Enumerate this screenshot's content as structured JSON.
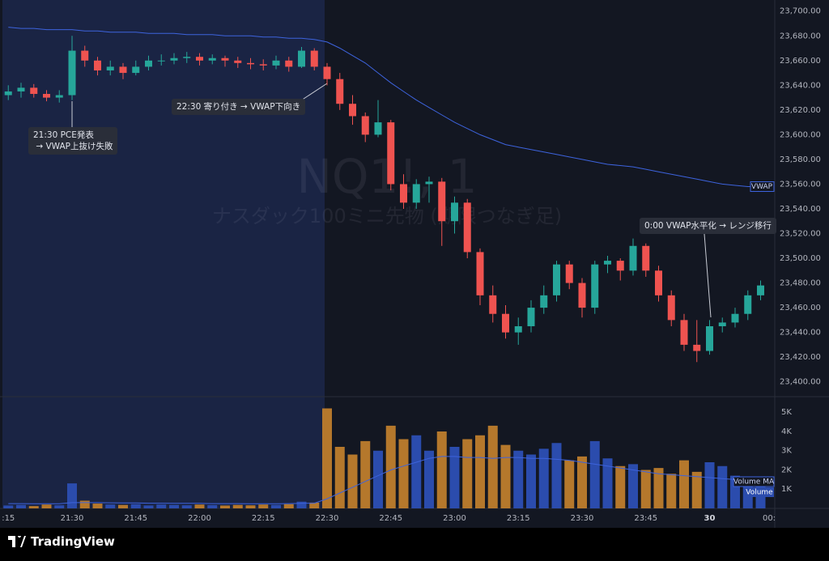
{
  "chart_data": {
    "type": "candlestick",
    "title": "NQ1!, 1",
    "subtitle": "ナスダック100ミニ先物 (期限つなぎ足)",
    "x": [
      "21:15",
      "21:18",
      "21:21",
      "21:24",
      "21:27",
      "21:30",
      "21:33",
      "21:36",
      "21:39",
      "21:42",
      "21:45",
      "21:48",
      "21:51",
      "21:54",
      "21:57",
      "22:00",
      "22:03",
      "22:06",
      "22:09",
      "22:12",
      "22:15",
      "22:18",
      "22:21",
      "22:24",
      "22:27",
      "22:30",
      "22:33",
      "22:36",
      "22:39",
      "22:42",
      "22:45",
      "22:48",
      "22:51",
      "22:54",
      "22:57",
      "23:00",
      "23:03",
      "23:06",
      "23:09",
      "23:12",
      "23:15",
      "23:18",
      "23:21",
      "23:24",
      "23:27",
      "23:30",
      "23:33",
      "23:36",
      "23:39",
      "23:42",
      "23:45",
      "23:48",
      "23:51",
      "23:54",
      "23:57",
      "00:00",
      "00:03",
      "00:06",
      "00:09",
      "00:12"
    ],
    "open": [
      23632,
      23635,
      23638,
      23633,
      23630,
      23632,
      23668,
      23660,
      23652,
      23655,
      23650,
      23655,
      23660,
      23660,
      23662,
      23663,
      23660,
      23662,
      23660,
      23658,
      23657,
      23656,
      23660,
      23655,
      23668,
      23655,
      23645,
      23625,
      23615,
      23600,
      23610,
      23560,
      23545,
      23560,
      23562,
      23530,
      23545,
      23505,
      23470,
      23455,
      23440,
      23445,
      23460,
      23470,
      23495,
      23480,
      23460,
      23495,
      23498,
      23490,
      23510,
      23490,
      23470,
      23450,
      23430,
      23425,
      23445,
      23448,
      23455,
      23470
    ],
    "high": [
      23640,
      23642,
      23641,
      23636,
      23636,
      23680,
      23672,
      23663,
      23660,
      23658,
      23660,
      23664,
      23665,
      23666,
      23667,
      23666,
      23665,
      23664,
      23663,
      23662,
      23661,
      23664,
      23663,
      23671,
      23670,
      23658,
      23650,
      23632,
      23618,
      23628,
      23612,
      23568,
      23564,
      23566,
      23565,
      23550,
      23548,
      23508,
      23478,
      23462,
      23452,
      23466,
      23478,
      23498,
      23498,
      23484,
      23498,
      23502,
      23500,
      23516,
      23512,
      23494,
      23474,
      23455,
      23450,
      23450,
      23452,
      23460,
      23474,
      23482
    ],
    "low": [
      23628,
      23630,
      23630,
      23627,
      23626,
      23628,
      23655,
      23648,
      23648,
      23645,
      23648,
      23652,
      23656,
      23657,
      23658,
      23656,
      23657,
      23655,
      23654,
      23653,
      23652,
      23653,
      23651,
      23654,
      23652,
      23640,
      23620,
      23608,
      23594,
      23598,
      23555,
      23540,
      23540,
      23545,
      23510,
      23520,
      23500,
      23462,
      23448,
      23435,
      23430,
      23440,
      23455,
      23465,
      23475,
      23452,
      23455,
      23488,
      23482,
      23486,
      23485,
      23465,
      23445,
      23425,
      23416,
      23422,
      23440,
      23444,
      23450,
      23466
    ],
    "close": [
      23635,
      23638,
      23633,
      23630,
      23632,
      23668,
      23660,
      23652,
      23655,
      23650,
      23655,
      23660,
      23660,
      23662,
      23663,
      23660,
      23662,
      23660,
      23658,
      23657,
      23656,
      23660,
      23655,
      23668,
      23655,
      23645,
      23625,
      23615,
      23600,
      23610,
      23560,
      23545,
      23560,
      23562,
      23530,
      23545,
      23505,
      23470,
      23455,
      23440,
      23445,
      23460,
      23470,
      23495,
      23480,
      23460,
      23495,
      23498,
      23490,
      23510,
      23490,
      23470,
      23450,
      23430,
      23425,
      23445,
      23448,
      23455,
      23470,
      23478
    ],
    "up_color": "#26a69a",
    "down_color": "#ef5350",
    "ylim": [
      23388,
      23709
    ],
    "yticks": [
      {
        "value": 23400,
        "label": "23,400.00"
      },
      {
        "value": 23420,
        "label": "23,420.00"
      },
      {
        "value": 23440,
        "label": "23,440.00"
      },
      {
        "value": 23460,
        "label": "23,460.00"
      },
      {
        "value": 23480,
        "label": "23,480.00"
      },
      {
        "value": 23500,
        "label": "23,500.00"
      },
      {
        "value": 23520,
        "label": "23,520.00"
      },
      {
        "value": 23540,
        "label": "23,540.00"
      },
      {
        "value": 23560,
        "label": "23,560.00"
      },
      {
        "value": 23580,
        "label": "23,580.00"
      },
      {
        "value": 23600,
        "label": "23,600.00"
      },
      {
        "value": 23620,
        "label": "23,620.00"
      },
      {
        "value": 23640,
        "label": "23,640.00"
      },
      {
        "value": 23660,
        "label": "23,660.00"
      },
      {
        "value": 23680,
        "label": "23,680.00"
      },
      {
        "value": 23700,
        "label": "23,700.00"
      }
    ],
    "xticks": [
      {
        "value": "21:15",
        "label": ":15"
      },
      "21:30",
      "21:45",
      "22:00",
      "22:15",
      "22:30",
      "22:45",
      "23:00",
      "23:15",
      "23:30",
      "23:45",
      {
        "value": "00:00",
        "label": "30"
      },
      {
        "value": "00:15",
        "label": "00:"
      }
    ],
    "grid": false,
    "overlays": [
      {
        "name": "VWAP",
        "color": "#3d63dd",
        "values": [
          23687,
          23686,
          23686,
          23685,
          23685,
          23685,
          23684,
          23684,
          23683,
          23683,
          23683,
          23682,
          23682,
          23682,
          23681,
          23681,
          23681,
          23680,
          23680,
          23680,
          23679,
          23679,
          23678,
          23678,
          23677,
          23675,
          23670,
          23664,
          23658,
          23650,
          23642,
          23635,
          23628,
          23622,
          23616,
          23610,
          23605,
          23600,
          23596,
          23592,
          23590,
          23588,
          23586,
          23584,
          23582,
          23580,
          23578,
          23576,
          23575,
          23574,
          23572,
          23570,
          23568,
          23566,
          23564,
          23562,
          23560,
          23559,
          23558,
          23558
        ]
      }
    ],
    "volume": {
      "name": "Volume",
      "up_color": "#2b4cad",
      "down_color": "#b5782c",
      "values": [
        150,
        180,
        120,
        200,
        160,
        1300,
        400,
        250,
        200,
        180,
        220,
        150,
        200,
        180,
        160,
        200,
        170,
        150,
        180,
        160,
        200,
        180,
        220,
        350,
        300,
        5200,
        3200,
        2800,
        3500,
        3000,
        4300,
        3600,
        3800,
        3000,
        4000,
        3200,
        3600,
        3800,
        4300,
        3300,
        3000,
        2800,
        3100,
        3400,
        2500,
        2700,
        3500,
        2600,
        2200,
        2300,
        2000,
        2100,
        1800,
        2500,
        1900,
        2400,
        2200,
        1700,
        1600,
        1500
      ],
      "ylim": [
        0,
        5810
      ],
      "yticks": [
        {
          "value": 1000,
          "label": "1K"
        },
        {
          "value": 2000,
          "label": "2K"
        },
        {
          "value": 3000,
          "label": "3K"
        },
        {
          "value": 4000,
          "label": "4K"
        },
        {
          "value": 5000,
          "label": "5K"
        }
      ],
      "ma": {
        "name": "Volume MA",
        "color": "#3d63dd",
        "values": [
          250,
          250,
          240,
          240,
          240,
          300,
          300,
          300,
          290,
          280,
          280,
          270,
          270,
          260,
          260,
          260,
          250,
          250,
          250,
          240,
          240,
          240,
          250,
          260,
          270,
          500,
          800,
          1100,
          1400,
          1700,
          2000,
          2200,
          2400,
          2600,
          2700,
          2700,
          2650,
          2650,
          2600,
          2650,
          2650,
          2600,
          2600,
          2550,
          2500,
          2400,
          2300,
          2200,
          2100,
          2000,
          1900,
          1800,
          1750,
          1700,
          1650,
          1600,
          1550,
          1500,
          1500,
          1500
        ]
      }
    },
    "annotations": [
      {
        "lines": [
          "21:30 PCE発表",
          " → VWAP上抜け失敗"
        ]
      },
      {
        "lines": [
          "22:30 寄り付き → VWAP下向き"
        ]
      },
      {
        "lines": [
          "0:00 VWAP水平化 → レンジ移行"
        ]
      }
    ]
  },
  "footer": {
    "brand": "TradingView"
  }
}
